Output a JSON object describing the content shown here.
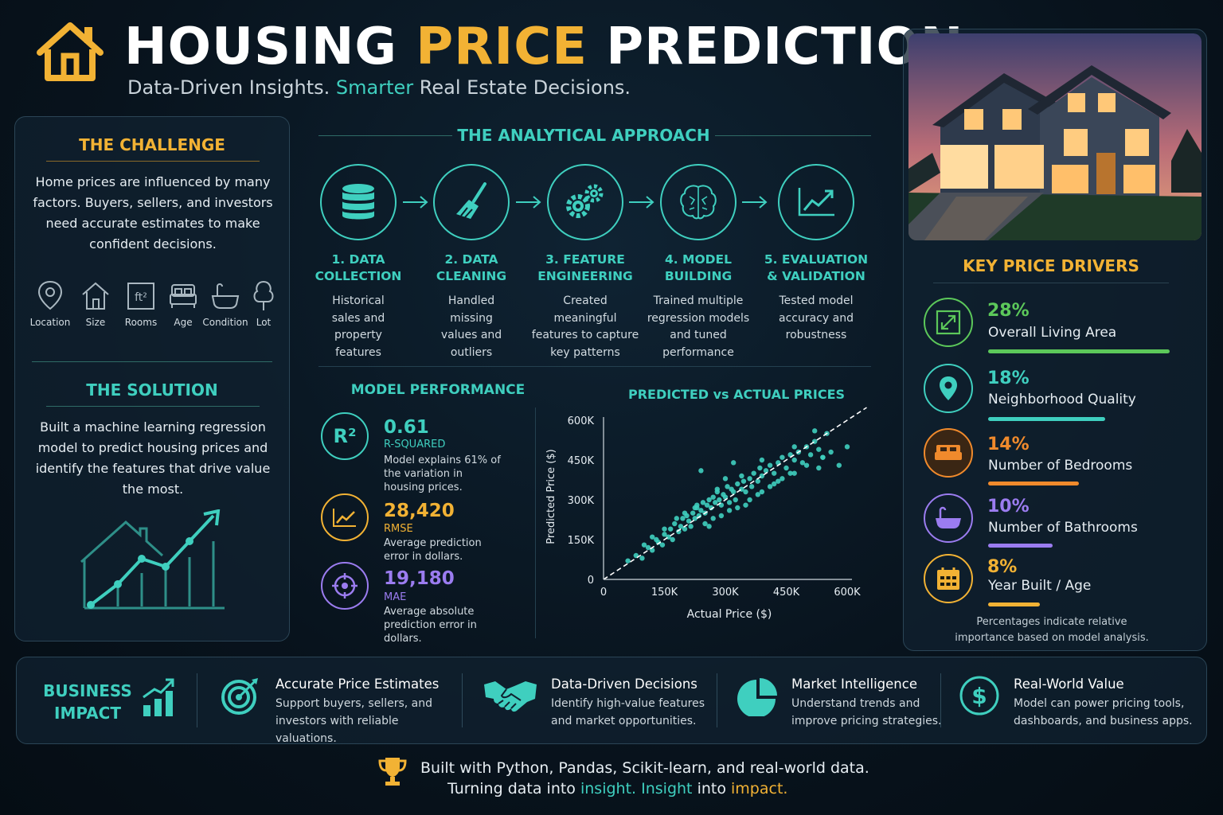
{
  "header": {
    "title_part1": "HOUSING",
    "title_part2": "PRICE",
    "title_part3": "PREDICTION",
    "subtitle_part1": "Data-Driven Insights.",
    "subtitle_part2": "Smarter",
    "subtitle_part3": "Real Estate Decisions."
  },
  "challenge": {
    "title": "THE CHALLENGE",
    "text": "Home prices are influenced by many factors. Buyers, sellers, and investors need accurate estimates to make confident decisions.",
    "factors": [
      {
        "label": "Location",
        "icon": "map-pin-icon"
      },
      {
        "label": "Size",
        "icon": "house-icon"
      },
      {
        "label": "Rooms",
        "icon": "square-feet-icon",
        "glyph": "ft²"
      },
      {
        "label": "Age",
        "icon": "bed-icon"
      },
      {
        "label": "Condition",
        "icon": "bathtub-icon"
      },
      {
        "label": "Lot",
        "icon": "tree-icon"
      }
    ]
  },
  "solution": {
    "title": "THE SOLUTION",
    "text": "Built a machine learning regression model to predict housing prices and identify the features that drive value the most."
  },
  "approach": {
    "title": "THE ANALYTICAL APPROACH",
    "steps": [
      {
        "title_line1": "1. DATA",
        "title_line2": "COLLECTION",
        "desc": "Historical sales and property features",
        "icon": "database-icon"
      },
      {
        "title_line1": "2. DATA",
        "title_line2": "CLEANING",
        "desc": "Handled missing values and outliers",
        "icon": "broom-icon"
      },
      {
        "title_line1": "3. FEATURE",
        "title_line2": "ENGINEERING",
        "desc": "Created meaningful features to capture key patterns",
        "icon": "gears-icon"
      },
      {
        "title_line1": "4. MODEL",
        "title_line2": "BUILDING",
        "desc": "Trained multiple regression models and tuned performance",
        "icon": "brain-icon"
      },
      {
        "title_line1": "5. EVALUATION",
        "title_line2": "& VALIDATION",
        "desc": "Tested model accuracy and robustness",
        "icon": "trend-chart-icon"
      }
    ]
  },
  "performance": {
    "title": "MODEL PERFORMANCE",
    "metrics": [
      {
        "value": "0.61",
        "name": "R-SQUARED",
        "desc": "Model explains 61% of the variation in housing prices.",
        "icon": "r-squared-icon",
        "icon_text": "R²",
        "color": "#3fcfbf"
      },
      {
        "value": "28,420",
        "name": "RMSE",
        "desc": "Average prediction error in dollars.",
        "icon": "line-chart-icon",
        "color": "#f2b234"
      },
      {
        "value": "19,180",
        "name": "MAE",
        "desc": "Average absolute prediction error in dollars.",
        "icon": "target-icon",
        "color": "#9b7cf0"
      }
    ]
  },
  "chart_data": {
    "type": "scatter",
    "title": "PREDICTED vs ACTUAL PRICES",
    "xlabel": "Actual Price ($)",
    "ylabel": "Predicted Price ($)",
    "xlim": [
      0,
      600000
    ],
    "ylim": [
      0,
      600000
    ],
    "x_ticks": [
      "0",
      "150K",
      "300K",
      "450K",
      "600K"
    ],
    "y_ticks": [
      "0",
      "150K",
      "300K",
      "450K",
      "600K"
    ],
    "reference_line": "y = x (dashed)",
    "point_color": "#3fcfbf",
    "series": [
      {
        "x": [
          60000,
          80000,
          95000,
          110000,
          120000,
          130000,
          135000,
          145000,
          150000,
          160000,
          165000,
          170000,
          175000,
          185000,
          190000,
          195000,
          200000,
          205000,
          210000,
          215000,
          220000,
          225000,
          230000,
          235000,
          240000,
          245000,
          250000,
          255000,
          260000,
          265000,
          270000,
          275000,
          280000,
          285000,
          290000,
          295000,
          300000,
          305000,
          310000,
          315000,
          320000,
          325000,
          330000,
          340000,
          345000,
          350000,
          360000,
          365000,
          370000,
          380000,
          385000,
          390000,
          400000,
          410000,
          420000,
          430000,
          440000,
          450000,
          460000,
          470000,
          480000,
          490000,
          500000,
          510000,
          520000,
          530000,
          540000,
          550000,
          560000,
          580000,
          600000,
          260000,
          290000,
          330000,
          360000,
          410000,
          440000,
          470000,
          500000,
          540000,
          200000,
          230000,
          250000,
          280000,
          310000,
          340000,
          380000,
          420000,
          180000,
          150000,
          120000,
          100000,
          350000,
          300000,
          270000,
          225000,
          390000,
          430000,
          460000,
          520000,
          240000,
          320000,
          470000,
          530000,
          390000
        ],
        "y": [
          70000,
          90000,
          80000,
          120000,
          110000,
          150000,
          140000,
          130000,
          170000,
          160000,
          190000,
          150000,
          210000,
          180000,
          200000,
          230000,
          190000,
          240000,
          220000,
          200000,
          250000,
          230000,
          270000,
          240000,
          260000,
          290000,
          250000,
          280000,
          300000,
          270000,
          310000,
          290000,
          330000,
          300000,
          280000,
          320000,
          310000,
          350000,
          290000,
          340000,
          330000,
          300000,
          360000,
          340000,
          370000,
          330000,
          380000,
          350000,
          400000,
          370000,
          420000,
          390000,
          410000,
          430000,
          400000,
          440000,
          460000,
          420000,
          470000,
          450000,
          480000,
          440000,
          500000,
          470000,
          520000,
          490000,
          460000,
          550000,
          480000,
          430000,
          500000,
          200000,
          240000,
          270000,
          300000,
          350000,
          380000,
          400000,
          430000,
          460000,
          250000,
          280000,
          210000,
          340000,
          260000,
          390000,
          320000,
          360000,
          230000,
          190000,
          160000,
          130000,
          280000,
          380000,
          230000,
          270000,
          450000,
          370000,
          400000,
          560000,
          410000,
          440000,
          500000,
          420000,
          330000
        ]
      }
    ]
  },
  "drivers": {
    "title": "KEY PRICE DRIVERS",
    "items": [
      {
        "pct": "28%",
        "label": "Overall Living Area",
        "value": 28,
        "color": "#5cc85a",
        "icon": "expand-icon"
      },
      {
        "pct": "18%",
        "label": "Neighborhood Quality",
        "value": 18,
        "color": "#3fcfbf",
        "icon": "location-pin-icon"
      },
      {
        "pct": "14%",
        "label": "Number of Bedrooms",
        "value": 14,
        "color": "#f08a2c",
        "icon": "bed-icon"
      },
      {
        "pct": "10%",
        "label": "Number of Bathrooms",
        "value": 10,
        "color": "#9b7cf0",
        "icon": "bathtub-icon"
      },
      {
        "pct": "8%",
        "label": "Year Built / Age",
        "value": 8,
        "color": "#f2b234",
        "icon": "calendar-icon"
      }
    ],
    "note": "Percentages indicate relative importance based on model analysis."
  },
  "impact": {
    "title_line1": "BUSINESS",
    "title_line2": "IMPACT",
    "items": [
      {
        "title": "Accurate Price Estimates",
        "desc": "Support buyers, sellers, and investors with reliable valuations.",
        "icon": "target-arrow-icon"
      },
      {
        "title": "Data-Driven Decisions",
        "desc": "Identify high-value features and market opportunities.",
        "icon": "handshake-icon"
      },
      {
        "title": "Market Intelligence",
        "desc": "Understand trends and improve pricing strategies.",
        "icon": "pie-chart-icon"
      },
      {
        "title": "Real-World Value",
        "desc": "Model can power pricing tools, dashboards, and business apps.",
        "icon": "dollar-icon"
      }
    ]
  },
  "footer": {
    "line1": "Built with Python, Pandas, Scikit-learn, and real-world data.",
    "line2_a": "Turning data into",
    "line2_b": "insight.",
    "line2_c": "Insight",
    "line2_d": "into",
    "line2_e": "impact."
  }
}
